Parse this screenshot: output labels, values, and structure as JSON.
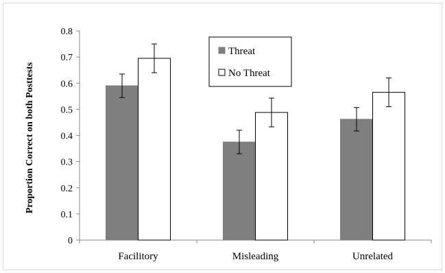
{
  "chart_data": {
    "type": "bar",
    "categories": [
      "Facilitory",
      "Misleading",
      "Unrelated"
    ],
    "series": [
      {
        "name": "Threat",
        "values": [
          0.59,
          0.375,
          0.462
        ],
        "error": [
          0.045,
          0.045,
          0.045
        ],
        "color": "#7f7f7f"
      },
      {
        "name": "No Threat",
        "values": [
          0.695,
          0.488,
          0.565
        ],
        "error": [
          0.055,
          0.055,
          0.055
        ],
        "color": "#ffffff"
      }
    ],
    "ylabel": "Proportion Correct on both Posttests",
    "xlabel": "",
    "ylim": [
      0,
      0.8
    ],
    "yticks": [
      "0",
      "0.1",
      "0.2",
      "0.3",
      "0.4",
      "0.5",
      "0.6",
      "0.7",
      "0.8"
    ],
    "legend": {
      "position": "top-center",
      "entries": [
        "Threat",
        "No Threat"
      ]
    },
    "grid": false
  }
}
